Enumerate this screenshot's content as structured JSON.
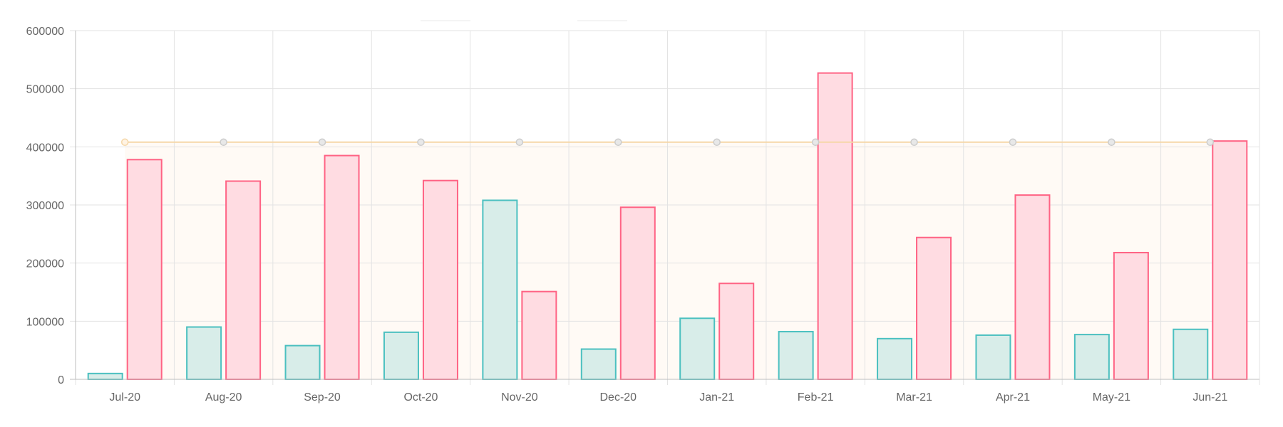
{
  "chart_data": {
    "type": "bar",
    "title": "",
    "xlabel": "",
    "ylabel": "",
    "categories": [
      "Jul-20",
      "Aug-20",
      "Sep-20",
      "Oct-20",
      "Nov-20",
      "Dec-20",
      "Jan-21",
      "Feb-21",
      "Mar-21",
      "Apr-21",
      "May-21",
      "Jun-21"
    ],
    "ylim": [
      0,
      600000
    ],
    "yticks": [
      "0",
      "100000",
      "200000",
      "300000",
      "400000",
      "500000",
      "600000"
    ],
    "grid": true,
    "series": [
      {
        "type": "bar",
        "values": [
          10000,
          90000,
          58000,
          81000,
          308000,
          52000,
          105000,
          82000,
          70000,
          76000,
          77000,
          86000
        ],
        "border_color": "#4bc0c0",
        "fill_color": "#d8ede9"
      },
      {
        "type": "bar",
        "values": [
          378000,
          341000,
          385000,
          342000,
          151000,
          296000,
          165000,
          527000,
          244000,
          317000,
          218000,
          410000
        ],
        "border_color": "#ff6384",
        "fill_color": "#ffdce2"
      },
      {
        "type": "line",
        "values": [
          408000,
          408000,
          408000,
          408000,
          408000,
          408000,
          408000,
          408000,
          408000,
          408000,
          408000,
          408000
        ],
        "border_color": "#f5d7a8",
        "fill_color": "#fffaf5",
        "point_color": "#cccccc"
      }
    ]
  }
}
